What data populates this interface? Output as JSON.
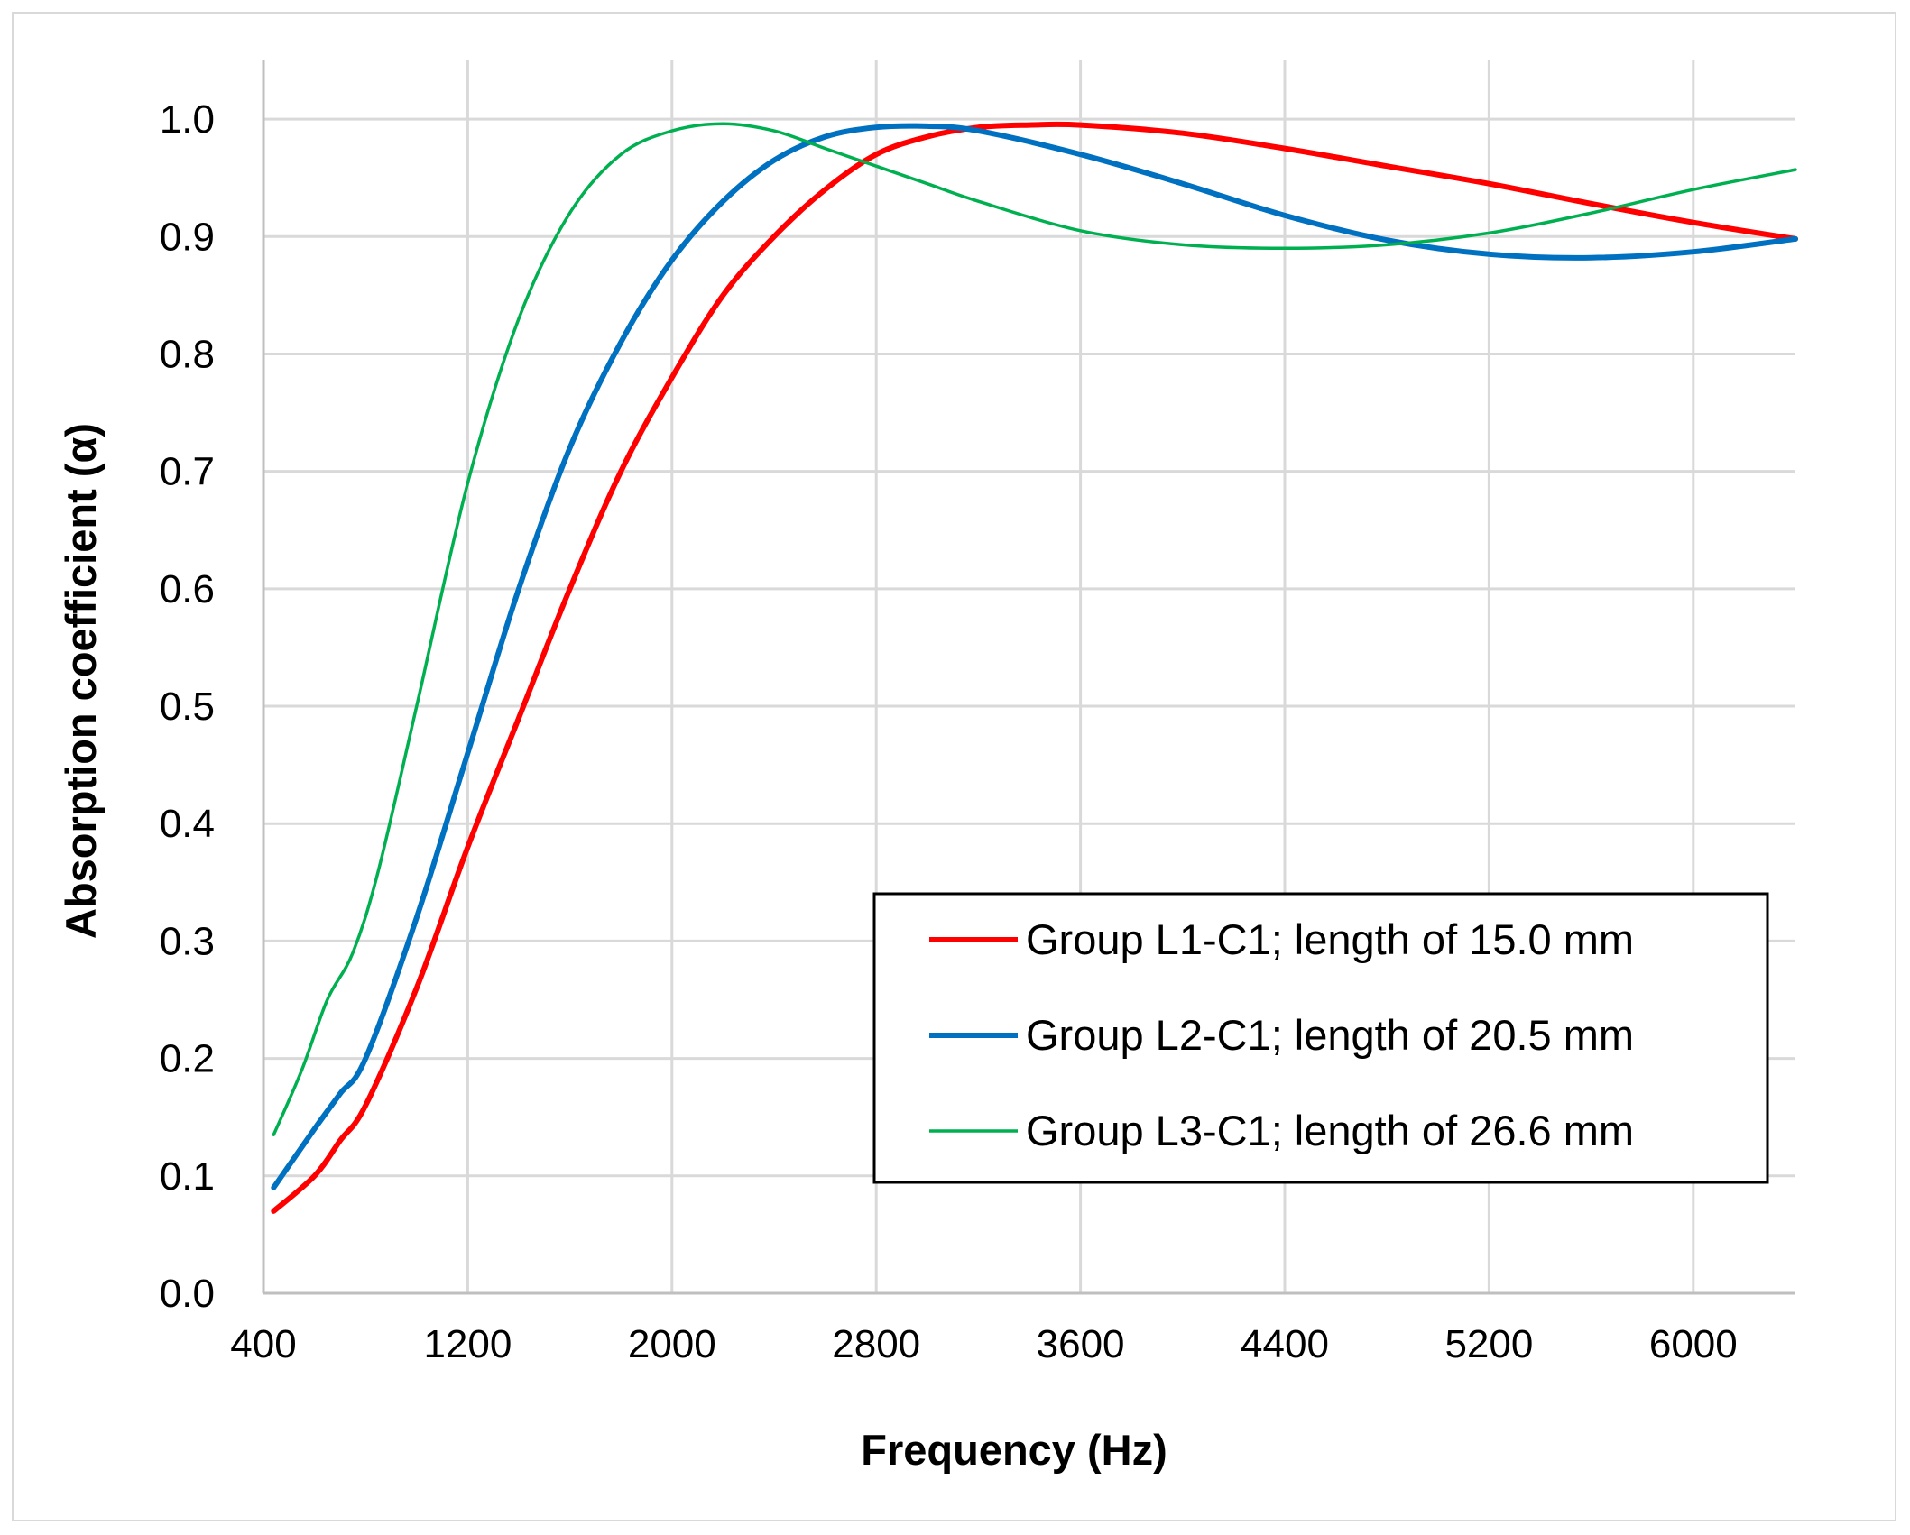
{
  "chart_data": {
    "type": "line",
    "title": "",
    "xlabel": "Frequency (Hz)",
    "ylabel": "Absorption coefficient (α)",
    "xlim": [
      400,
      6400
    ],
    "ylim": [
      0,
      1.05
    ],
    "xticks": [
      400,
      1200,
      2000,
      2800,
      3600,
      4400,
      5200,
      6000
    ],
    "xtick_labels": [
      "400",
      "1200",
      "2000",
      "2800",
      "3600",
      "4400",
      "5200",
      "6000"
    ],
    "yticks": [
      0.0,
      0.1,
      0.2,
      0.3,
      0.4,
      0.5,
      0.6,
      0.7,
      0.8,
      0.9,
      1.0
    ],
    "ytick_labels": [
      "0.0",
      "0.1",
      "0.2",
      "0.3",
      "0.4",
      "0.5",
      "0.6",
      "0.7",
      "0.8",
      "0.9",
      "1.0"
    ],
    "grid": true,
    "legend_position": "lower-right",
    "series": [
      {
        "name": "Group L1-C1; length of 15.0 mm",
        "color": "#ff0000",
        "x": [
          440,
          600,
          700,
          800,
          1000,
          1200,
          1400,
          1600,
          1800,
          2000,
          2200,
          2400,
          2600,
          2800,
          3000,
          3200,
          3400,
          3600,
          4000,
          4400,
          4800,
          5200,
          5600,
          6000,
          6400
        ],
        "y": [
          0.07,
          0.1,
          0.13,
          0.16,
          0.26,
          0.38,
          0.49,
          0.6,
          0.7,
          0.78,
          0.85,
          0.9,
          0.94,
          0.97,
          0.985,
          0.993,
          0.995,
          0.995,
          0.988,
          0.975,
          0.96,
          0.945,
          0.928,
          0.912,
          0.898
        ]
      },
      {
        "name": "Group L2-C1; length of 20.5 mm",
        "color": "#0070c0",
        "x": [
          440,
          600,
          700,
          800,
          1000,
          1200,
          1400,
          1600,
          1800,
          2000,
          2200,
          2400,
          2600,
          2800,
          3000,
          3200,
          3600,
          4000,
          4400,
          4800,
          5200,
          5600,
          6000,
          6400
        ],
        "y": [
          0.09,
          0.14,
          0.17,
          0.2,
          0.32,
          0.46,
          0.6,
          0.72,
          0.81,
          0.88,
          0.93,
          0.965,
          0.985,
          0.993,
          0.994,
          0.99,
          0.97,
          0.945,
          0.918,
          0.897,
          0.885,
          0.882,
          0.887,
          0.898
        ]
      },
      {
        "name": "Group L3-C1; length of 26.6 mm",
        "color": "#00b050",
        "x": [
          440,
          550,
          650,
          750,
          850,
          1000,
          1200,
          1400,
          1600,
          1800,
          2000,
          2200,
          2400,
          2600,
          2800,
          3000,
          3200,
          3600,
          4000,
          4400,
          4800,
          5200,
          5600,
          6000,
          6400
        ],
        "y": [
          0.135,
          0.19,
          0.25,
          0.29,
          0.36,
          0.5,
          0.69,
          0.83,
          0.92,
          0.97,
          0.99,
          0.996,
          0.99,
          0.975,
          0.96,
          0.945,
          0.93,
          0.905,
          0.893,
          0.89,
          0.893,
          0.903,
          0.92,
          0.94,
          0.957
        ]
      }
    ]
  }
}
